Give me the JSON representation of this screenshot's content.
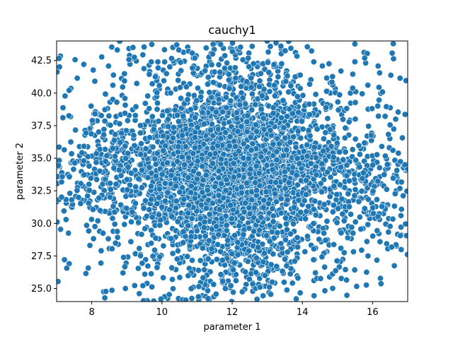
{
  "chart_data": {
    "type": "scatter",
    "title": "cauchy1",
    "xlabel": "parameter 1",
    "ylabel": "parameter 2",
    "xlim": [
      7.0,
      17.0
    ],
    "ylim": [
      24.0,
      44.0
    ],
    "xticks": [
      8,
      10,
      12,
      14,
      16
    ],
    "yticks": [
      25.0,
      27.5,
      30.0,
      32.5,
      35.0,
      37.5,
      40.0,
      42.5
    ],
    "xtick_labels": [
      "8",
      "10",
      "12",
      "14",
      "16"
    ],
    "ytick_labels": [
      "25.0",
      "27.5",
      "30.0",
      "32.5",
      "35.0",
      "37.5",
      "40.0",
      "42.5"
    ],
    "distribution": {
      "kind": "cauchy",
      "x_center": 12.0,
      "x_scale": 1.6,
      "y_center": 34.0,
      "y_scale": 3.2,
      "n_points": 4200,
      "seed": 12345
    },
    "marker_color": "#1f77b4",
    "marker_edge_color": "#ffffff",
    "grid": false,
    "legend": "none"
  }
}
